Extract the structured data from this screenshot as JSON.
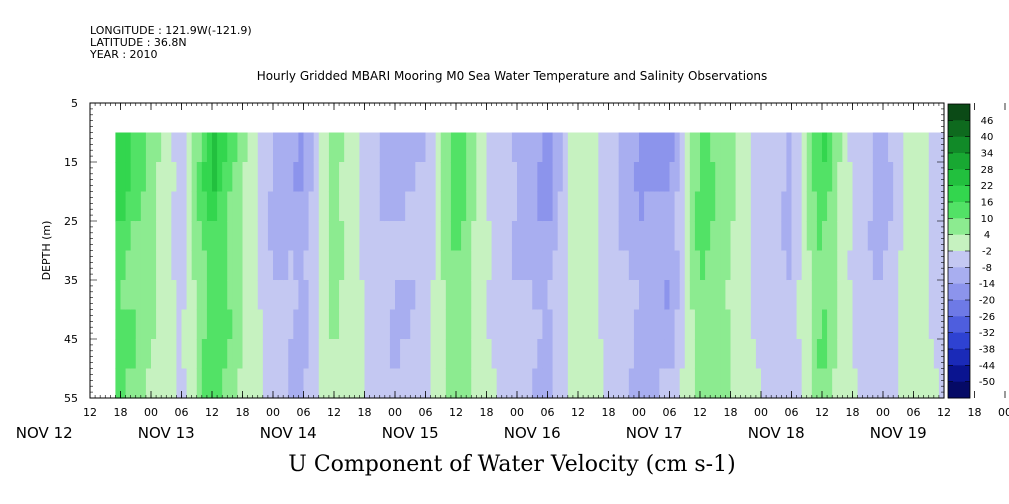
{
  "header": {
    "longitude": "LONGITUDE : 121.9W(-121.9)",
    "latitude": "LATITUDE : 36.8N",
    "year": "YEAR : 2010"
  },
  "chart_data": {
    "type": "heatmap",
    "title": "Hourly Gridded MBARI Mooring M0 Sea Water Temperature and Salinity Observations",
    "caption": "U Component of Water Velocity (cm s-1)",
    "ylabel": "DEPTH (m)",
    "xlabel": "",
    "ylim": [
      55,
      5
    ],
    "y_ticks": [
      "5",
      "15",
      "25",
      "35",
      "45",
      "55"
    ],
    "x_hour_ticks": [
      "12",
      "18",
      "00",
      "06",
      "12",
      "18",
      "00",
      "06",
      "12",
      "18",
      "00",
      "06",
      "12",
      "18",
      "00",
      "06",
      "12",
      "18",
      "00",
      "06",
      "12",
      "18",
      "00",
      "06",
      "12",
      "18",
      "00",
      "06",
      "12",
      "18",
      "00",
      "06",
      "12",
      "18",
      "00",
      "06",
      "12"
    ],
    "x_date_labels": [
      "NOV 12",
      "NOV 13",
      "NOV 14",
      "NOV 15",
      "NOV 16",
      "NOV 17",
      "NOV 18",
      "NOV 19"
    ],
    "data_extent": {
      "x_start": "NOV 12 17:00",
      "x_end": "NOV 19 12:00",
      "depth_top": 10,
      "depth_bottom": 55
    },
    "colorbar": {
      "levels": [
        "46",
        "40",
        "34",
        "28",
        "22",
        "16",
        "10",
        "4",
        "-2",
        "-8",
        "-14",
        "-20",
        "-26",
        "-32",
        "-38",
        "-44",
        "-50"
      ],
      "colors": [
        "#0b4a16",
        "#0e6a1e",
        "#118a28",
        "#18a832",
        "#22c03e",
        "#33d64e",
        "#52e266",
        "#8ceb90",
        "#c6f2c0",
        "#c4c8f2",
        "#a8aef0",
        "#8c94ec",
        "#6e7ae6",
        "#4e5ede",
        "#2e42d2",
        "#1a2ab8",
        "#0a1490",
        "#050a66"
      ]
    },
    "velocity_bands": [
      {
        "x": "NOV 12 18:00",
        "value": 18
      },
      {
        "x": "NOV 13 00:00",
        "value": 8
      },
      {
        "x": "NOV 13 06:00",
        "value": -6
      },
      {
        "x": "NOV 13 12:00",
        "value": 22
      },
      {
        "x": "NOV 13 18:00",
        "value": 6
      },
      {
        "x": "NOV 14 00:00",
        "value": -10
      },
      {
        "x": "NOV 14 06:00",
        "value": -14
      },
      {
        "x": "NOV 14 12:00",
        "value": 8
      },
      {
        "x": "NOV 14 18:00",
        "value": -4
      },
      {
        "x": "NOV 15 00:00",
        "value": -12
      },
      {
        "x": "NOV 15 06:00",
        "value": -8
      },
      {
        "x": "NOV 15 12:00",
        "value": 14
      },
      {
        "x": "NOV 15 18:00",
        "value": -2
      },
      {
        "x": "NOV 16 00:00",
        "value": -10
      },
      {
        "x": "NOV 16 06:00",
        "value": -16
      },
      {
        "x": "NOV 16 12:00",
        "value": 4
      },
      {
        "x": "NOV 16 18:00",
        "value": -6
      },
      {
        "x": "NOV 17 00:00",
        "value": -14
      },
      {
        "x": "NOV 17 06:00",
        "value": -18
      },
      {
        "x": "NOV 17 12:00",
        "value": 14
      },
      {
        "x": "NOV 17 18:00",
        "value": 6
      },
      {
        "x": "NOV 18 00:00",
        "value": -6
      },
      {
        "x": "NOV 18 06:00",
        "value": -10
      },
      {
        "x": "NOV 18 12:00",
        "value": 16
      },
      {
        "x": "NOV 18 18:00",
        "value": -4
      },
      {
        "x": "NOV 19 00:00",
        "value": -12
      },
      {
        "x": "NOV 19 06:00",
        "value": 4
      },
      {
        "x": "NOV 19 12:00",
        "value": -8
      }
    ]
  }
}
